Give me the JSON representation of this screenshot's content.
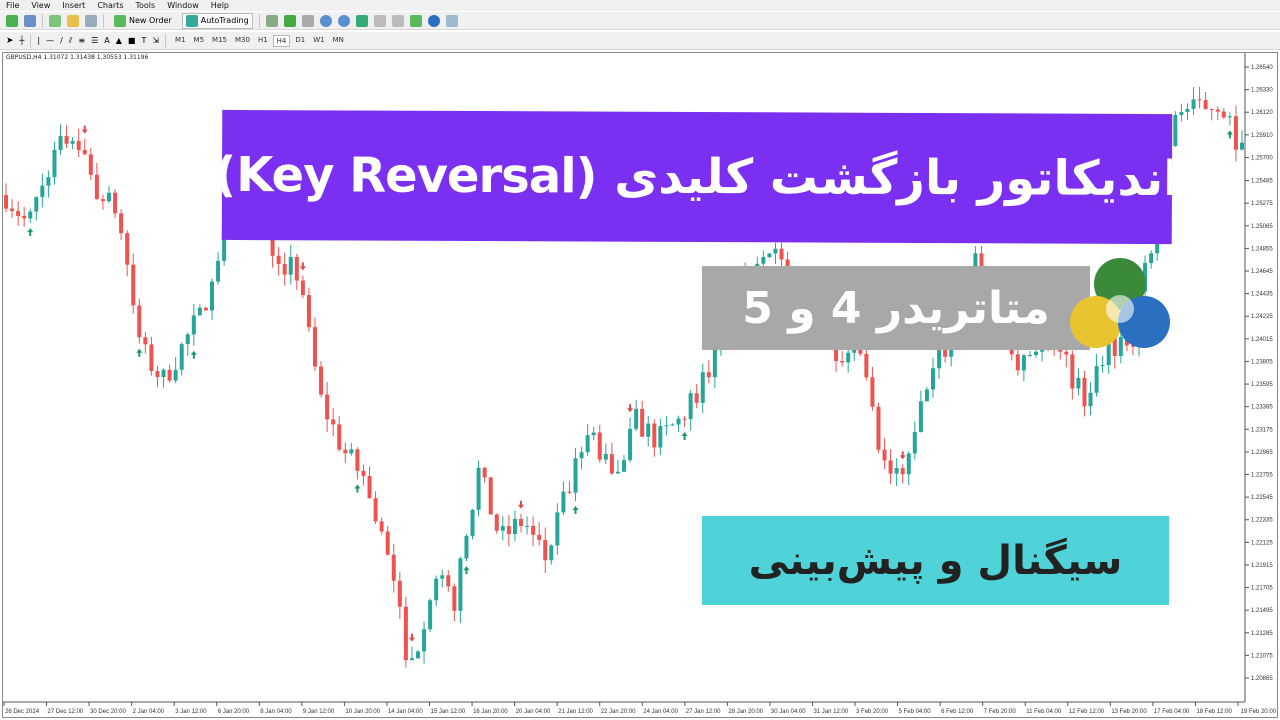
{
  "menu": [
    "File",
    "View",
    "Insert",
    "Charts",
    "Tools",
    "Window",
    "Help"
  ],
  "toolbar": {
    "new_order": "New Order",
    "autotrading": "AutoTrading",
    "timeframes": [
      "M1",
      "M5",
      "M15",
      "M30",
      "H1",
      "H4",
      "D1",
      "W1",
      "MN"
    ],
    "active_timeframe": "H4"
  },
  "chart": {
    "symbol_info": "GBPUSD,H4  1.31072 1.31438 1.30553 1.31196",
    "price_labels": [
      "1.26540",
      "1.26330",
      "1.26120",
      "1.25910",
      "1.25700",
      "1.25485",
      "1.25275",
      "1.25065",
      "1.24855",
      "1.24645",
      "1.24435",
      "1.24225",
      "1.24015",
      "1.23805",
      "1.23595",
      "1.23385",
      "1.23175",
      "1.22965",
      "1.22755",
      "1.22545",
      "1.22335",
      "1.22125",
      "1.21915",
      "1.21705",
      "1.21495",
      "1.21285",
      "1.21075",
      "1.20865"
    ],
    "time_labels": [
      "26 Dec 2024",
      "27 Dec 12:00",
      "30 Dec 20:00",
      "2 Jan 04:00",
      "3 Jan 12:00",
      "6 Jan 20:00",
      "8 Jan 04:00",
      "9 Jan 12:00",
      "10 Jan 20:00",
      "14 Jan 04:00",
      "15 Jan 12:00",
      "16 Jan 20:00",
      "20 Jan 04:00",
      "21 Jan 12:00",
      "22 Jan 20:00",
      "24 Jan 04:00",
      "27 Jan 12:00",
      "28 Jan 20:00",
      "30 Jan 04:00",
      "31 Jan 12:00",
      "3 Feb 20:00",
      "5 Feb 04:00",
      "6 Feb 12:00",
      "7 Feb 20:00",
      "11 Feb 04:00",
      "12 Feb 12:00",
      "13 Feb 20:00",
      "17 Feb 04:00",
      "18 Feb 12:00",
      "19 Feb 20:00"
    ],
    "price_path": [
      1.2535,
      1.2507,
      1.2568,
      1.2595,
      1.254,
      1.2517,
      1.2391,
      1.2363,
      1.24,
      1.2438,
      1.2521,
      1.253,
      1.2484,
      1.2456,
      1.2345,
      1.2298,
      1.227,
      1.2196,
      1.2094,
      1.2177,
      1.2159,
      1.228,
      1.2215,
      1.2233,
      1.2196,
      1.2261,
      1.2317,
      1.227,
      1.2326,
      1.2307,
      1.2326,
      1.2363,
      1.241,
      1.2456,
      1.2493,
      1.2447,
      1.2428,
      1.2391,
      1.2391,
      1.228,
      1.227,
      1.2363,
      1.24,
      1.2475,
      1.2438,
      1.2382,
      1.24,
      1.2382,
      1.2345,
      1.24,
      1.2391,
      1.2493,
      1.2614,
      1.2614,
      1.2623,
      1.2577
    ],
    "colors": {
      "bull": "#26a69a",
      "bear": "#ef5350",
      "up_arrow": "#1a9a6c",
      "down_arrow": "#e04848"
    }
  },
  "overlay": {
    "title": "اندیکاتور بازگشت کلیدی (Key Reversal)",
    "platform": "متاتریدر 4 و 5",
    "subtitle": "سیگنال و پیش‌بینی",
    "banner_color": "#7b2ff0",
    "gray_color": "#a8a8a8",
    "teal_color": "#4fd3d9"
  }
}
